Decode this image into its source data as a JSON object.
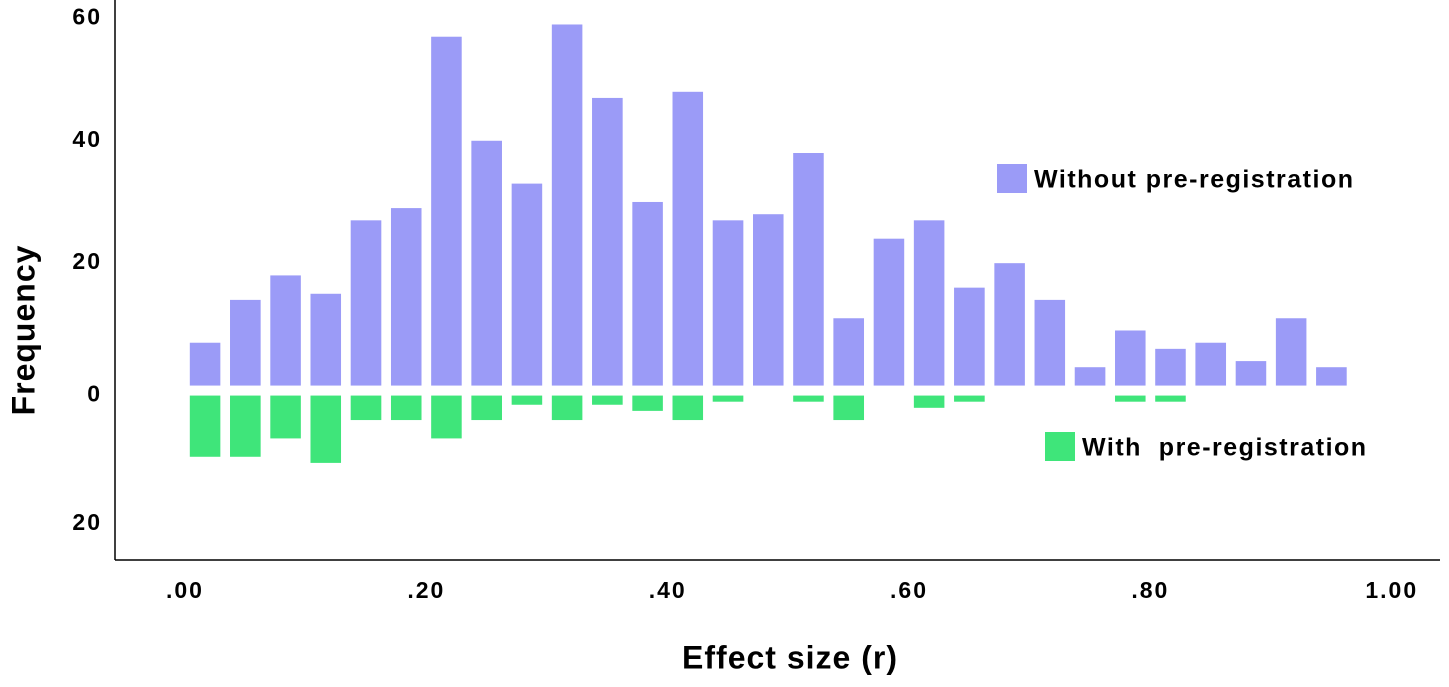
{
  "chart_data": {
    "type": "mirrored-histogram",
    "x_label": "Effect size (r)",
    "y_label": "Frequency",
    "bins": [
      0,
      0.0333,
      0.0667,
      0.1,
      0.1333,
      0.1667,
      0.2,
      0.2333,
      0.2667,
      0.3,
      0.3333,
      0.3667,
      0.4,
      0.4333,
      0.4667,
      0.5,
      0.5333,
      0.5667,
      0.6,
      0.6333,
      0.6667,
      0.7,
      0.7333,
      0.7667,
      0.8,
      0.8333,
      0.8667,
      0.9,
      0.9333,
      0.9667
    ],
    "series": [
      {
        "name": "Without pre-registration",
        "color": "#9b9bf7",
        "values": [
          7,
          14,
          18,
          15,
          27,
          29,
          57,
          40,
          33,
          59,
          47,
          30,
          48,
          27,
          28,
          38,
          11,
          24,
          27,
          16,
          20,
          14,
          3,
          9,
          6,
          7,
          4,
          11,
          3
        ]
      },
      {
        "name": "With  pre-registration",
        "color": "#3fe57a",
        "values": [
          -10,
          -10,
          -7,
          -11,
          -4,
          -4,
          -7,
          -4,
          -1.5,
          -4,
          -1.5,
          -2.5,
          -4,
          -1,
          0,
          -1,
          -4,
          0,
          -2,
          -1,
          0,
          0,
          0,
          -1,
          -1,
          0,
          0,
          0,
          0
        ]
      }
    ],
    "xlim": [
      -0.058,
      1.04
    ],
    "xticks": [
      {
        "value": 0,
        "label": ".00"
      },
      {
        "value": 0.2,
        "label": ".20"
      },
      {
        "value": 0.4,
        "label": ".40"
      },
      {
        "value": 0.6,
        "label": ".60"
      },
      {
        "value": 0.8,
        "label": ".80"
      },
      {
        "value": 1.0,
        "label": "1.00"
      }
    ],
    "ylim": [
      -28.5,
      63
    ],
    "yticks": [
      60,
      40,
      20,
      0,
      {
        "value": -20,
        "label": "20"
      }
    ]
  }
}
